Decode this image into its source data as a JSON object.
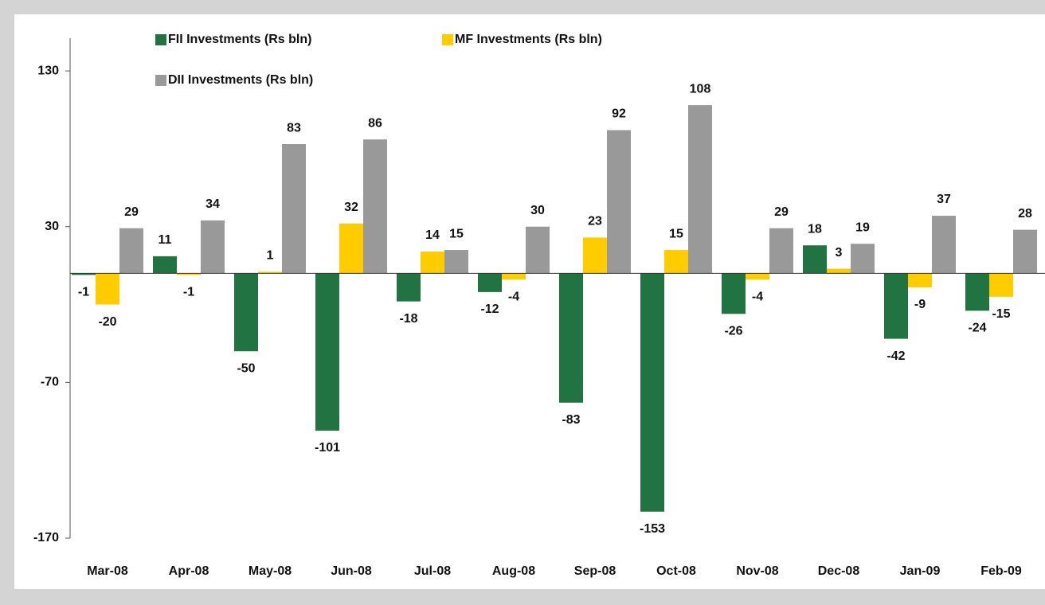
{
  "chart_data": {
    "type": "bar",
    "categories": [
      "Mar-08",
      "Apr-08",
      "May-08",
      "Jun-08",
      "Jul-08",
      "Aug-08",
      "Sep-08",
      "Oct-08",
      "Nov-08",
      "Dec-08",
      "Jan-09",
      "Feb-09"
    ],
    "series": [
      {
        "name": "FII Investments (Rs bln)",
        "color": "#217341",
        "values": [
          -1,
          11,
          -50,
          -101,
          -18,
          -12,
          -83,
          -153,
          -26,
          18,
          -42,
          -24
        ]
      },
      {
        "name": "MF Investments (Rs bln)",
        "color": "#ffcc00",
        "values": [
          -20,
          -1,
          1,
          32,
          14,
          -4,
          23,
          15,
          -4,
          3,
          -9,
          -15
        ]
      },
      {
        "name": "DII Investments (Rs bln)",
        "color": "#999999",
        "values": [
          29,
          34,
          83,
          86,
          15,
          30,
          92,
          108,
          29,
          19,
          37,
          28
        ]
      }
    ],
    "ylim": [
      -170,
      151
    ],
    "yticks": [
      -170,
      -70,
      30,
      130
    ],
    "grid": false
  }
}
